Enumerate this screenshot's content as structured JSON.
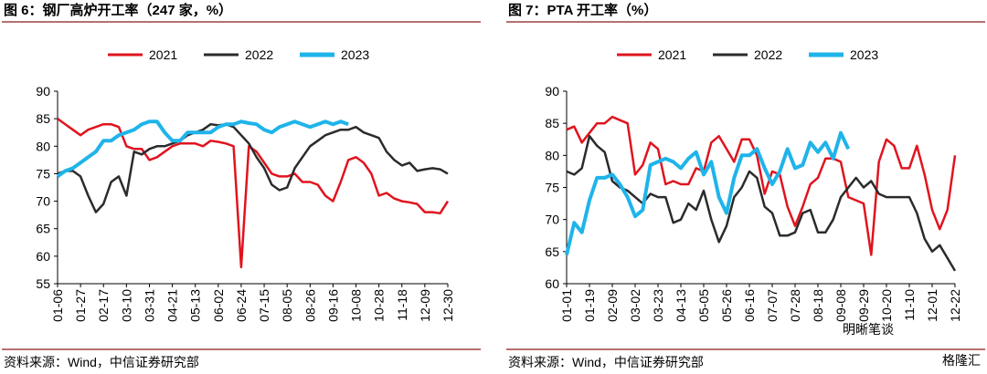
{
  "chart_data": [
    {
      "type": "line",
      "title": "图 6：钢厂高炉开工率（247 家，%）",
      "source": "资料来源：Wind，中信证券研究部",
      "categories": [
        "01-06",
        null,
        null,
        "01-27",
        null,
        null,
        "02-17",
        null,
        null,
        "03-10",
        null,
        null,
        "03-31",
        null,
        null,
        "04-21",
        null,
        null,
        "05-13",
        null,
        null,
        "06-02",
        null,
        null,
        "06-24",
        null,
        null,
        "07-15",
        null,
        null,
        "08-05",
        null,
        null,
        "08-26",
        null,
        null,
        "09-16",
        null,
        null,
        "10-08",
        null,
        null,
        "10-28",
        null,
        null,
        "11-18",
        null,
        null,
        "12-09",
        null,
        null,
        "12-30"
      ],
      "ylim": [
        55,
        90
      ],
      "yticks": [
        55,
        60,
        65,
        70,
        75,
        80,
        85,
        90
      ],
      "legend": "top",
      "series": [
        {
          "name": "2021",
          "color": "#e0141e",
          "values": [
            85,
            84,
            83,
            82,
            83,
            83.5,
            84,
            84,
            83.5,
            80,
            79.5,
            79.5,
            77.5,
            78,
            79,
            80,
            80.5,
            80.5,
            80.5,
            80,
            81,
            80.8,
            80.5,
            80,
            58,
            80,
            79,
            77,
            75,
            74.5,
            74.5,
            75,
            73.5,
            73.5,
            73,
            71,
            70,
            73.5,
            77.5,
            78,
            77,
            75,
            71,
            71.5,
            70.5,
            70,
            69.8,
            69.5,
            68,
            68,
            67.8,
            70
          ]
        },
        {
          "name": "2022",
          "color": "#2b2b2b",
          "values": [
            75,
            75.5,
            75.5,
            74.5,
            71,
            68,
            69.5,
            73.5,
            74.5,
            71,
            79,
            78.5,
            79.5,
            80,
            80,
            80.5,
            81,
            82,
            82.5,
            83,
            84,
            83.8,
            84,
            83.5,
            82,
            80.5,
            78,
            76,
            73,
            72,
            72.5,
            76,
            78,
            80,
            81,
            82,
            82.5,
            83,
            83,
            83.5,
            82.5,
            82,
            81.5,
            79,
            77.5,
            76.5,
            77,
            75.5,
            75.8,
            76,
            75.8,
            75
          ]
        },
        {
          "name": "2023",
          "color": "#1fb4ea",
          "values": [
            74.5,
            75.5,
            76,
            77,
            78,
            79,
            81,
            81,
            82,
            82.5,
            83,
            84,
            84.5,
            84.5,
            82.5,
            81,
            81,
            82.5,
            82.5,
            82.5,
            82.5,
            83.5,
            84,
            84,
            84.5,
            84.2,
            84,
            83,
            82.5,
            83.5,
            84,
            84.5,
            84,
            83.5,
            84,
            84.5,
            84,
            84.5,
            84,
            null,
            null,
            null,
            null,
            null,
            null,
            null,
            null,
            null,
            null,
            null,
            null,
            null
          ]
        }
      ]
    },
    {
      "type": "line",
      "title": "图 7：PTA 开工率（%）",
      "source": "资料来源：Wind，中信证券研究部",
      "watermark": "明晰笔谈",
      "watermark2": "格隆汇",
      "categories": [
        "01-01",
        null,
        null,
        "01-19",
        null,
        null,
        "02-09",
        null,
        null,
        "03-02",
        null,
        null,
        "03-23",
        null,
        null,
        "04-13",
        null,
        null,
        "05-05",
        null,
        null,
        "05-26",
        null,
        null,
        "06-16",
        null,
        null,
        "07-07",
        null,
        null,
        "07-28",
        null,
        null,
        "08-18",
        null,
        null,
        "09-08",
        null,
        null,
        "09-29",
        null,
        null,
        "10-20",
        null,
        null,
        "11-10",
        null,
        null,
        "12-01",
        null,
        null,
        "12-22"
      ],
      "ylim": [
        60,
        90
      ],
      "yticks": [
        60,
        65,
        70,
        75,
        80,
        85,
        90
      ],
      "legend": "top",
      "series": [
        {
          "name": "2021",
          "color": "#e0141e",
          "values": [
            84,
            84.5,
            82,
            83.5,
            85,
            85,
            86,
            85.5,
            85,
            77,
            78.5,
            82,
            81,
            75.5,
            76,
            75.5,
            75.5,
            78,
            77.5,
            82,
            83,
            81,
            79,
            82.5,
            82.5,
            80,
            74,
            77.5,
            77,
            72,
            69,
            72,
            75.5,
            76.5,
            79.5,
            79.5,
            79,
            73.5,
            73,
            72.5,
            64.5,
            79,
            82.5,
            81.5,
            78,
            78,
            81.5,
            77,
            71.5,
            68.5,
            71.5,
            80
          ]
        },
        {
          "name": "2022",
          "color": "#2b2b2b",
          "values": [
            77.5,
            77,
            78,
            83,
            81.5,
            80.5,
            76,
            75,
            74.5,
            73.5,
            72.5,
            74,
            73.5,
            73.5,
            69.5,
            70,
            72.5,
            71.5,
            74.5,
            70,
            66.5,
            69,
            73.5,
            75,
            77.5,
            76.5,
            72,
            71,
            67.5,
            67.5,
            68,
            71,
            71.5,
            68,
            68,
            70,
            73.5,
            75,
            76.5,
            75,
            76,
            74,
            73.5,
            73.5,
            73.5,
            73.5,
            71,
            67,
            65,
            66,
            64,
            62
          ]
        },
        {
          "name": "2023",
          "color": "#1fb4ea",
          "values": [
            64.5,
            69.5,
            68,
            73,
            76.5,
            76.5,
            77,
            75.5,
            73.5,
            70.5,
            71.5,
            78.5,
            79,
            79.5,
            79,
            78,
            79.5,
            80.5,
            77,
            79,
            73.5,
            71,
            76.5,
            80,
            80,
            81,
            78,
            75.5,
            77.5,
            81,
            78,
            78.5,
            82,
            80.5,
            82,
            79.5,
            83.5,
            81,
            null,
            null,
            null,
            null,
            null,
            null,
            null,
            null,
            null,
            null,
            null,
            null,
            null,
            null
          ]
        }
      ]
    }
  ]
}
